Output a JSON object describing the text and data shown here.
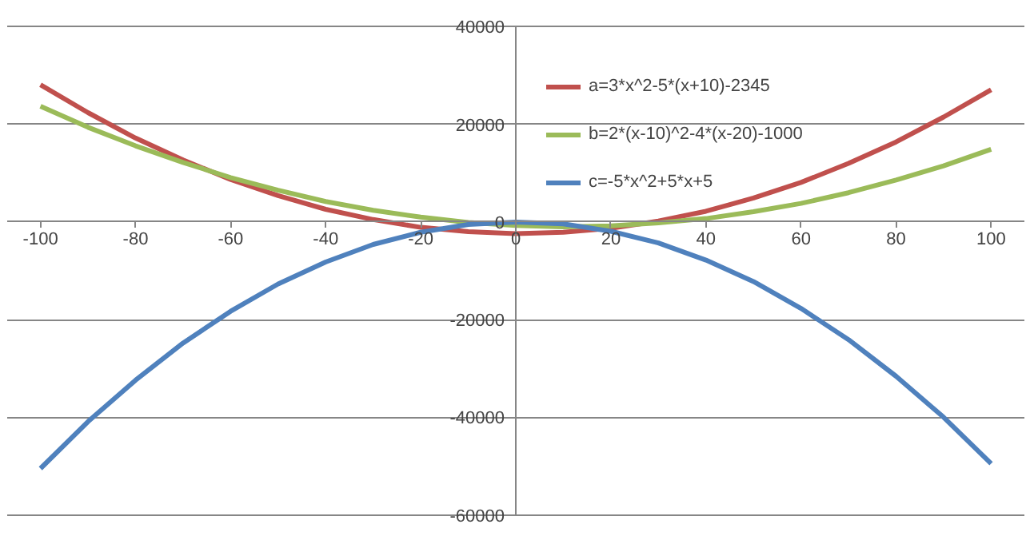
{
  "chart_data": {
    "type": "line",
    "x": [
      -100,
      -90,
      -80,
      -70,
      -60,
      -50,
      -40,
      -30,
      -20,
      -10,
      0,
      10,
      20,
      30,
      40,
      50,
      60,
      70,
      80,
      90,
      100
    ],
    "series": [
      {
        "name": "a=3*x^2-5*(x+10)-2345",
        "color": "#c0504d",
        "values": [
          28100,
          22400,
          17200,
          12700,
          8700,
          5400,
          2600,
          500,
          -1100,
          -2000,
          -2400,
          -2100,
          -1300,
          200,
          2200,
          4900,
          8100,
          12000,
          16400,
          21500,
          27100
        ]
      },
      {
        "name": "b=2*(x-10)^2-4*(x-20)-1000",
        "color": "#9bbb59",
        "values": [
          23700,
          19400,
          15600,
          12200,
          9100,
          6500,
          4200,
          2400,
          1000,
          -100,
          -700,
          -1000,
          -800,
          -200,
          700,
          2100,
          3800,
          6000,
          8600,
          11500,
          14900
        ]
      },
      {
        "name": "c=-5*x^2+5*x+5",
        "color": "#4f81bd",
        "values": [
          -50500,
          -40900,
          -32400,
          -24800,
          -18300,
          -12700,
          -8200,
          -4600,
          -2100,
          -500,
          0,
          -400,
          -1900,
          -4300,
          -7800,
          -12200,
          -17700,
          -24100,
          -31600,
          -40000,
          -49500
        ]
      }
    ],
    "xlim": [
      -100,
      100
    ],
    "ylim": [
      -60000,
      40000
    ],
    "xticks": [
      -100,
      -80,
      -60,
      -40,
      -20,
      0,
      20,
      40,
      60,
      80,
      100
    ],
    "yticks": [
      -60000,
      -40000,
      -20000,
      0,
      20000,
      40000
    ],
    "grid": "y",
    "legend": "top right",
    "marker": "none",
    "line_style": "solid"
  }
}
